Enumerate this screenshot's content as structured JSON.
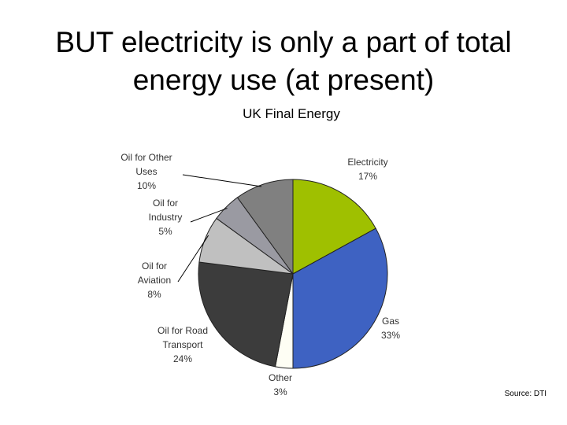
{
  "slide": {
    "title_line1": "BUT electricity is only a part of total",
    "title_line2": "energy use (at present)",
    "source": "Source: DTI"
  },
  "chart_data": {
    "type": "pie",
    "title": "UK Final Energy",
    "slices": [
      {
        "label": [
          "Electricity"
        ],
        "pct_label": "17%",
        "value": 17,
        "color": "#9fc000"
      },
      {
        "label": [
          "Gas"
        ],
        "pct_label": "33%",
        "value": 33,
        "color": "#3e62c2"
      },
      {
        "label": [
          "Other"
        ],
        "pct_label": "3%",
        "value": 3,
        "color": "#fefef4"
      },
      {
        "label": [
          "Oil for Road",
          "Transport"
        ],
        "pct_label": "24%",
        "value": 24,
        "color": "#3c3c3c"
      },
      {
        "label": [
          "Oil for",
          "Aviation"
        ],
        "pct_label": "8%",
        "value": 8,
        "color": "#c0c0c0"
      },
      {
        "label": [
          "Oil for",
          "Industry"
        ],
        "pct_label": "5%",
        "value": 5,
        "color": "#9a9aa2"
      },
      {
        "label": [
          "Oil for Other",
          "Uses"
        ],
        "pct_label": "10%",
        "value": 10,
        "color": "#808080"
      }
    ],
    "legend": "none"
  }
}
